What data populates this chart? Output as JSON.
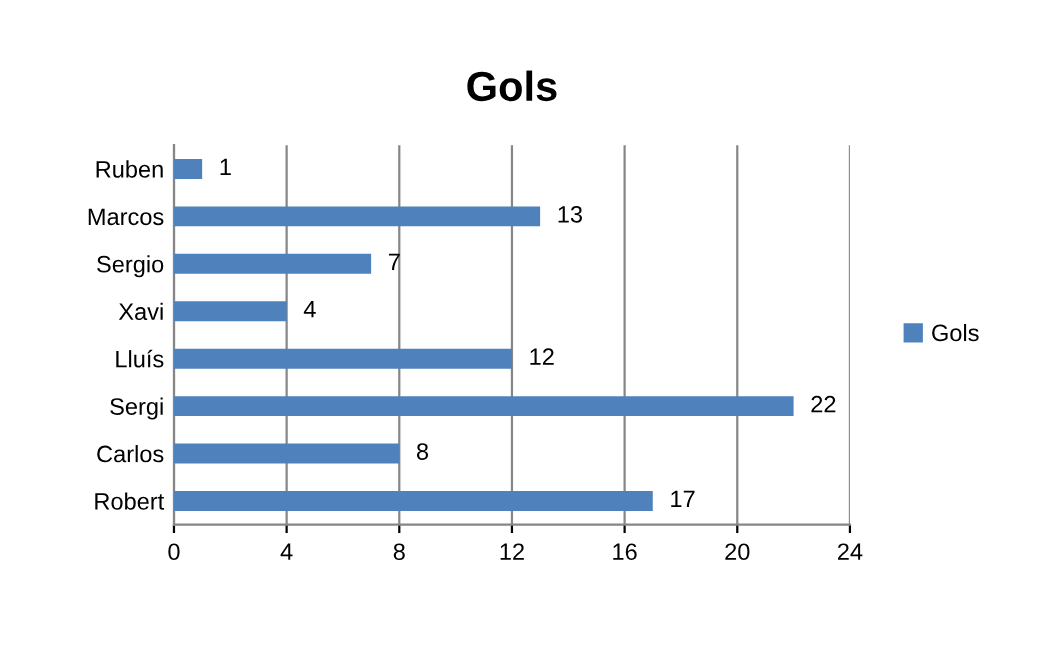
{
  "chart_data": {
    "type": "bar",
    "orientation": "horizontal",
    "title": "Gols",
    "categories": [
      "Ruben",
      "Marcos",
      "Sergio",
      "Xavi",
      "Lluís",
      "Sergi",
      "Carlos",
      "Robert"
    ],
    "series": [
      {
        "name": "Gols",
        "color": "#4f81bd",
        "values": [
          1,
          13,
          7,
          4,
          12,
          22,
          8,
          17
        ]
      }
    ],
    "xlim": [
      0,
      24
    ],
    "xticks": [
      0,
      4,
      8,
      12,
      16,
      20,
      24
    ],
    "grid": "x",
    "legend": "right",
    "data_labels": true
  }
}
